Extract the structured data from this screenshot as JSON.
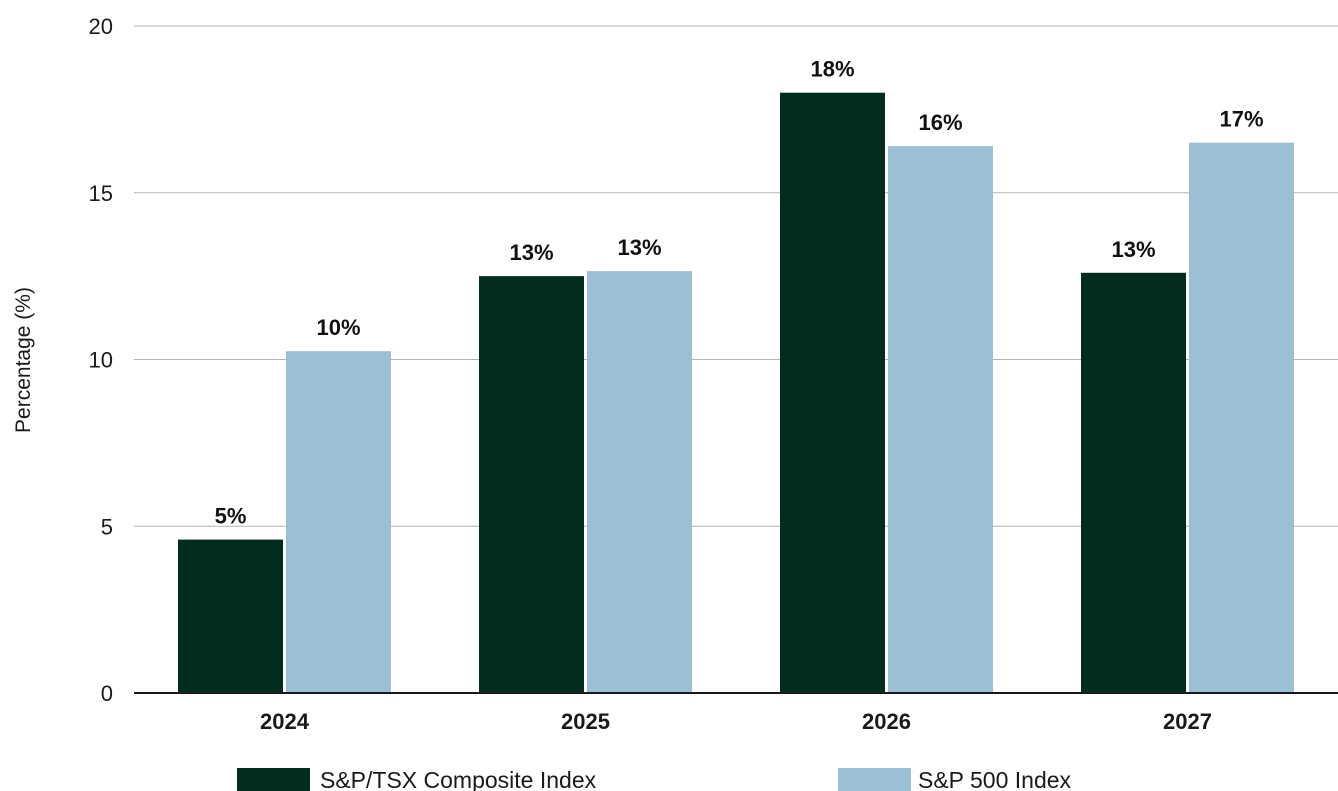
{
  "chart_data": {
    "type": "bar",
    "categories": [
      "2024",
      "2025",
      "2026",
      "2027"
    ],
    "series": [
      {
        "name": "S&P/TSX Composite Index",
        "values": [
          4.6,
          12.5,
          18.0,
          12.6
        ],
        "labels": [
          "5%",
          "13%",
          "18%",
          "13%"
        ],
        "color": "#022c1e"
      },
      {
        "name": "S&P 500 Index",
        "values": [
          10.25,
          12.65,
          16.4,
          16.5
        ],
        "labels": [
          "10%",
          "13%",
          "16%",
          "17%"
        ],
        "color": "#9bbfd4"
      }
    ],
    "ylabel": "Percentage (%)",
    "xlabel": "",
    "ylim": [
      0,
      20
    ],
    "yticks": [
      "0",
      "5",
      "10",
      "15",
      "20"
    ],
    "grid": true,
    "legend_position": "bottom"
  }
}
